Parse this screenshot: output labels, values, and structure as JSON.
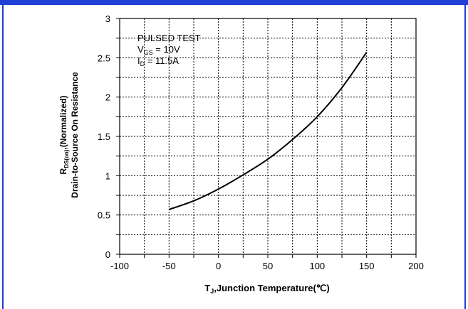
{
  "chart_data": {
    "type": "line",
    "title": "",
    "xlabel": {
      "main": "T",
      "sub": "J",
      "rest": ",Junction Temperature(℃)"
    },
    "ylabel": {
      "line1_main": "R",
      "line1_sub": "DS(on)",
      "line1_rest": ",(Normalized)",
      "line2": "Drain-to-Source On Resistance"
    },
    "xlim": [
      -100,
      200
    ],
    "ylim": [
      0,
      3
    ],
    "x_ticks": [
      "-100",
      "-50",
      "0",
      "50",
      "100",
      "150",
      "200"
    ],
    "y_ticks": [
      "0",
      "0.5",
      "1",
      "1.5",
      "2",
      "2.5",
      "3"
    ],
    "minor_x_step": 25,
    "minor_y_step": 0.25,
    "grid": true,
    "series": [
      {
        "name": "",
        "x": [
          -50,
          -25,
          0,
          25,
          50,
          75,
          100,
          125,
          150
        ],
        "y": [
          0.57,
          0.68,
          0.83,
          1.01,
          1.21,
          1.46,
          1.75,
          2.12,
          2.57
        ]
      }
    ],
    "annotation": {
      "line1": "PULSED TEST",
      "line2_main": "V",
      "line2_sub": "GS",
      "line2_rest": " = 10V",
      "line3_main": "I",
      "line3_sub": "D",
      "line3_rest": " = 11.5A"
    }
  }
}
